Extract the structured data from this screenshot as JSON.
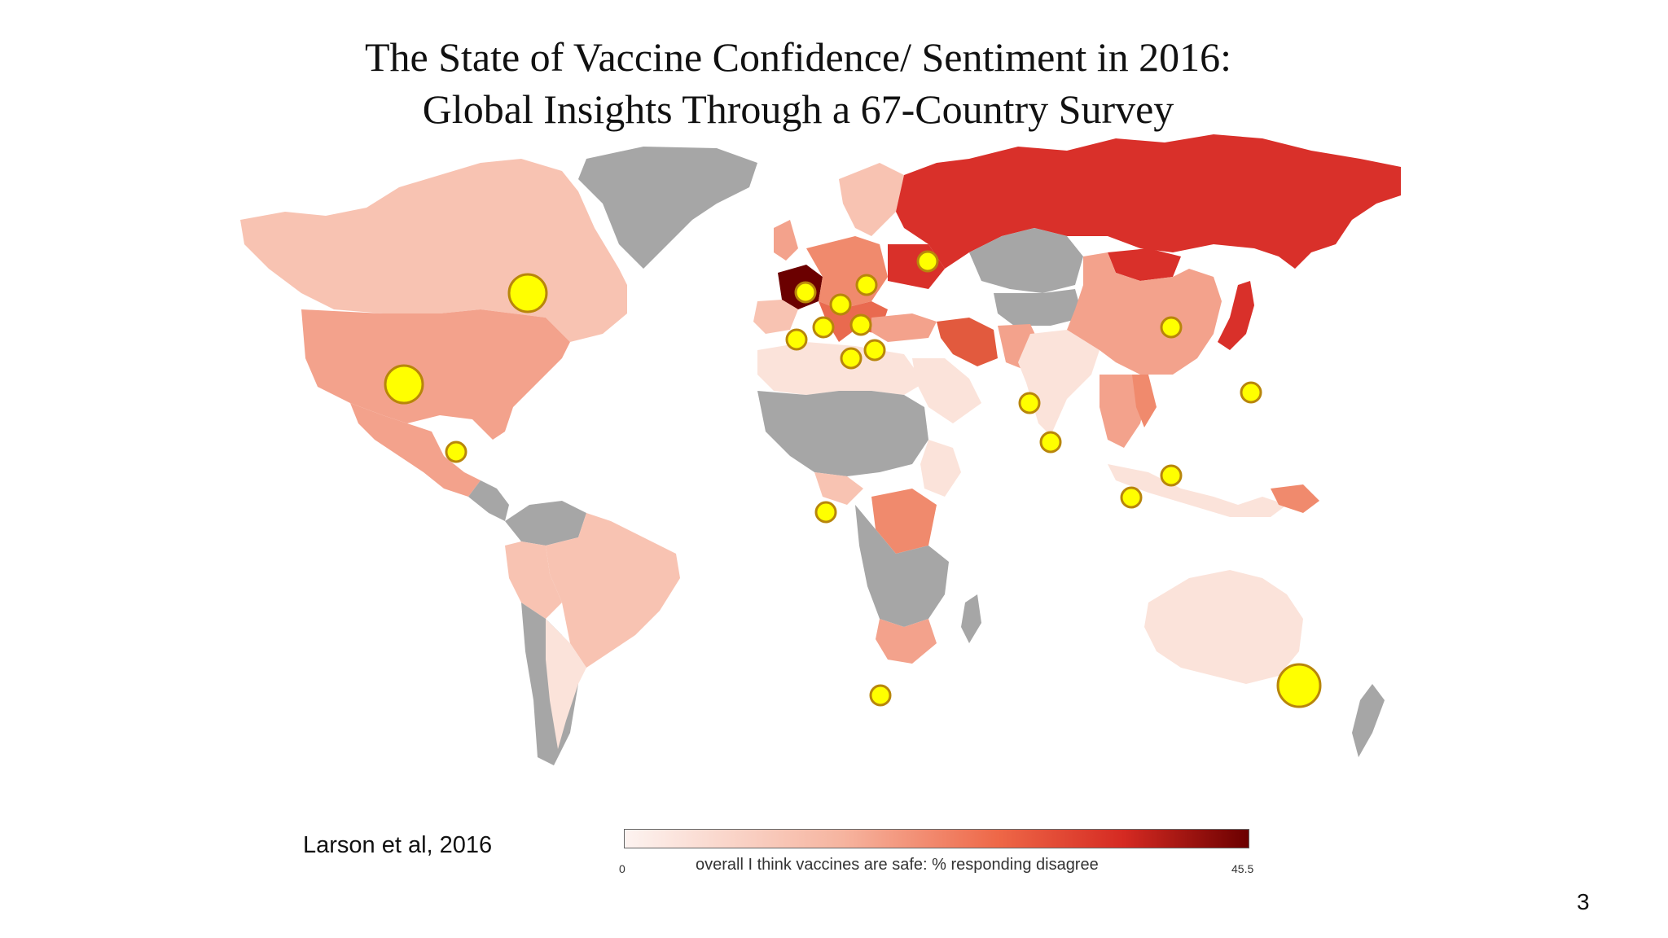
{
  "title": {
    "line1": "The State of Vaccine Confidence/ Sentiment in 2016:",
    "line2": "Global Insights Through a 67-Country Survey"
  },
  "citation": "Larson et al, 2016",
  "legend": {
    "min": "0",
    "max": "45.5",
    "label": "overall I think vaccines are safe: % responding disagree"
  },
  "page_number": "3",
  "colors": {
    "no_data": "#a6a6a6",
    "low": "#fbe3da",
    "mid_low": "#f6b49f",
    "mid": "#f08a6d",
    "high": "#d9302a",
    "very_high": "#b01818",
    "max": "#6b0000",
    "marker_fill": "#ffff00",
    "marker_stroke": "#b8860b"
  }
}
